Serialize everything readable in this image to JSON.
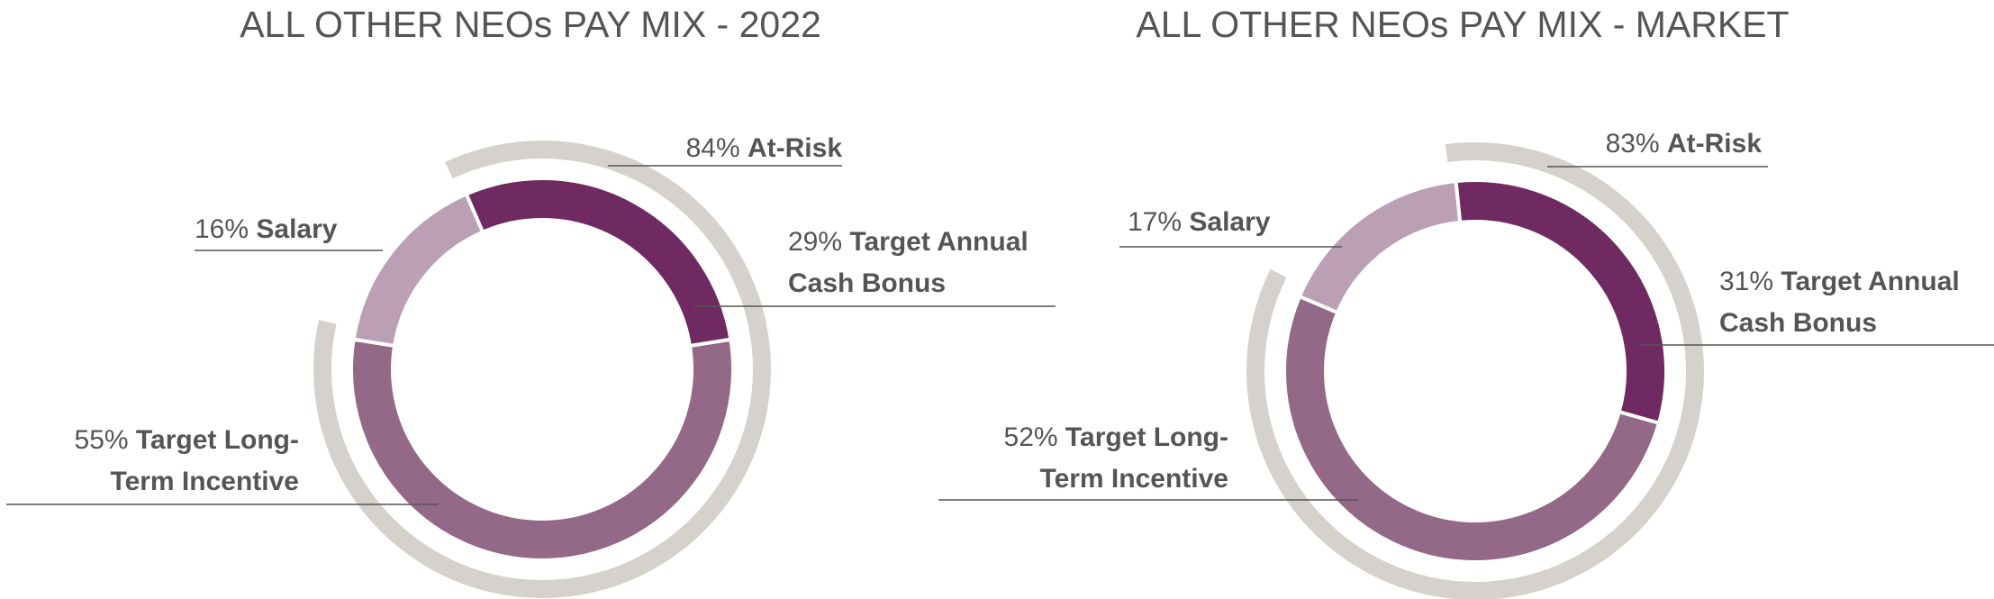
{
  "chart_data": [
    {
      "type": "donut",
      "title": "ALL OTHER NEOs PAY MIX - 2022",
      "categories": [
        "Salary",
        "Target Annual Cash Bonus",
        "Target Long-Term Incentive"
      ],
      "values": [
        16,
        29,
        55
      ],
      "value_labels": [
        "16%",
        "29%",
        "55%"
      ],
      "colors": [
        "#bb9fb5",
        "#6e2a61",
        "#946887"
      ],
      "at_risk": {
        "value": 84,
        "value_label": "84%",
        "label": "At-Risk",
        "color": "#d5d1cc"
      }
    },
    {
      "type": "donut",
      "title": "ALL OTHER NEOs PAY MIX - MARKET",
      "categories": [
        "Salary",
        "Target Annual Cash Bonus",
        "Target Long-Term Incentive"
      ],
      "values": [
        17,
        31,
        52
      ],
      "value_labels": [
        "17%",
        "31%",
        "52%"
      ],
      "colors": [
        "#bb9fb5",
        "#6e2a61",
        "#946887"
      ],
      "at_risk": {
        "value": 83,
        "value_label": "83%",
        "label": "At-Risk",
        "color": "#d5d1cc"
      }
    }
  ]
}
